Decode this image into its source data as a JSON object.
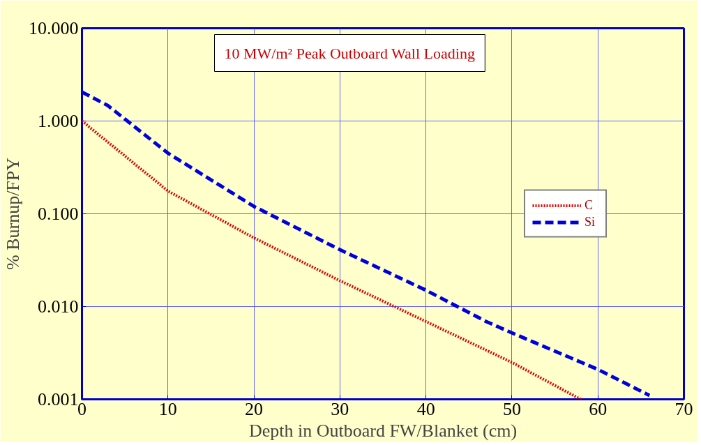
{
  "chart_data": {
    "type": "line",
    "xlabel": "Depth in Outboard FW/Blanket (cm)",
    "ylabel": "% Burnup/FPY",
    "annotations": [
      "10 MW/m² Peak Outboard Wall Loading"
    ],
    "log": "y",
    "xlim": [
      0,
      70
    ],
    "ylim": [
      0.001,
      10
    ],
    "xticks": [
      0,
      10,
      20,
      30,
      40,
      50,
      60,
      70
    ],
    "yticks": [
      {
        "value": 0.001,
        "label": "0.001"
      },
      {
        "value": 0.01,
        "label": "0.010"
      },
      {
        "value": 0.1,
        "label": "0.100"
      },
      {
        "value": 1,
        "label": "1.000"
      },
      {
        "value": 10,
        "label": "10.000"
      }
    ],
    "grid": true,
    "legend": "right",
    "marker": "none",
    "series": [
      {
        "name": "C",
        "color": "#dd0000",
        "line_style": "dotted",
        "x": [
          0,
          10,
          20,
          30,
          40,
          50,
          58
        ],
        "values": [
          1.0,
          0.176,
          0.055,
          0.019,
          0.0069,
          0.0025,
          0.001
        ]
      },
      {
        "name": "Si",
        "color": "#0000dd",
        "line_style": "dashed",
        "x": [
          0,
          3,
          10,
          20,
          30,
          40,
          47,
          50,
          60,
          66
        ],
        "values": [
          2.05,
          1.47,
          0.45,
          0.12,
          0.041,
          0.015,
          0.0069,
          0.0052,
          0.0021,
          0.0011
        ]
      }
    ]
  }
}
